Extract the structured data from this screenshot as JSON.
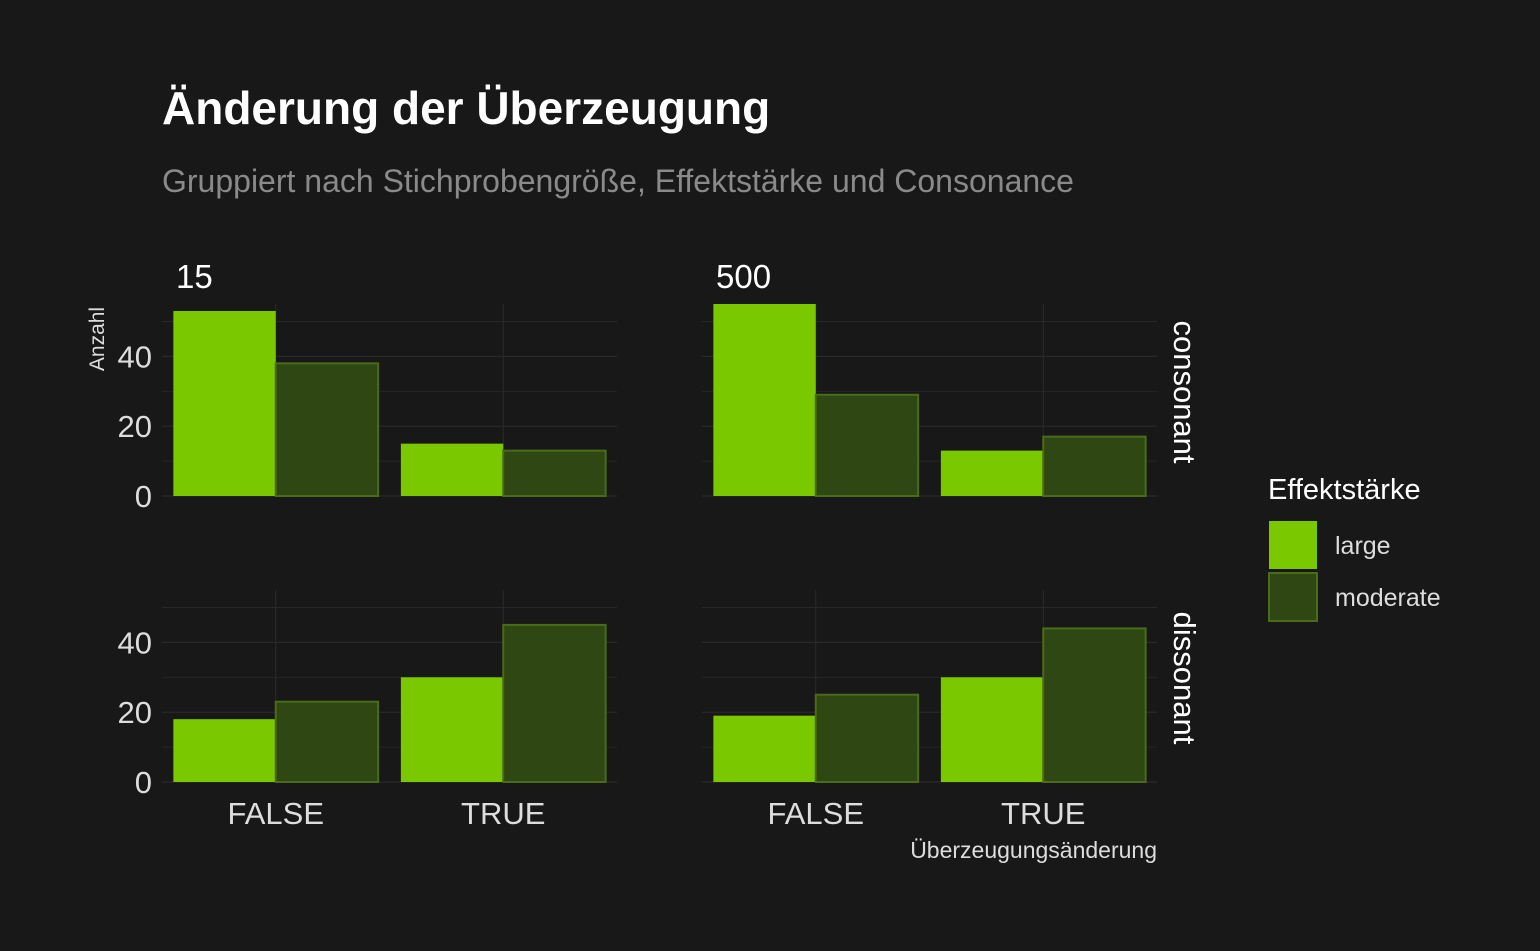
{
  "chart_data": {
    "type": "bar",
    "title": "Änderung der Überzeugung",
    "subtitle": "Gruppiert nach Stichprobengröße, Effektstärke und Consonance",
    "xlabel": "Überzeugungsänderung",
    "ylabel": "Anzahl",
    "ylim": [
      0,
      55
    ],
    "y_ticks": [
      0,
      20,
      40
    ],
    "categories": [
      "FALSE",
      "TRUE"
    ],
    "col_facets": [
      "15",
      "500"
    ],
    "row_facets": [
      "consonant",
      "dissonant"
    ],
    "legend": {
      "title": "Effektstärke",
      "position": "right",
      "items": [
        "large",
        "moderate"
      ]
    },
    "grid": true,
    "colors": {
      "large": "#7ac900",
      "moderate": "#2f4712",
      "moderate_border": "#4a6b1a",
      "background": "#181818",
      "grid": "#2a2a2a"
    },
    "panels": [
      {
        "col": "15",
        "row": "consonant",
        "series": [
          {
            "name": "large",
            "values": [
              53,
              15
            ]
          },
          {
            "name": "moderate",
            "values": [
              38,
              13
            ]
          }
        ]
      },
      {
        "col": "500",
        "row": "consonant",
        "series": [
          {
            "name": "large",
            "values": [
              55,
              13
            ]
          },
          {
            "name": "moderate",
            "values": [
              29,
              17
            ]
          }
        ]
      },
      {
        "col": "15",
        "row": "dissonant",
        "series": [
          {
            "name": "large",
            "values": [
              18,
              30
            ]
          },
          {
            "name": "moderate",
            "values": [
              23,
              45
            ]
          }
        ]
      },
      {
        "col": "500",
        "row": "dissonant",
        "series": [
          {
            "name": "large",
            "values": [
              19,
              30
            ]
          },
          {
            "name": "moderate",
            "values": [
              25,
              44
            ]
          }
        ]
      }
    ]
  }
}
